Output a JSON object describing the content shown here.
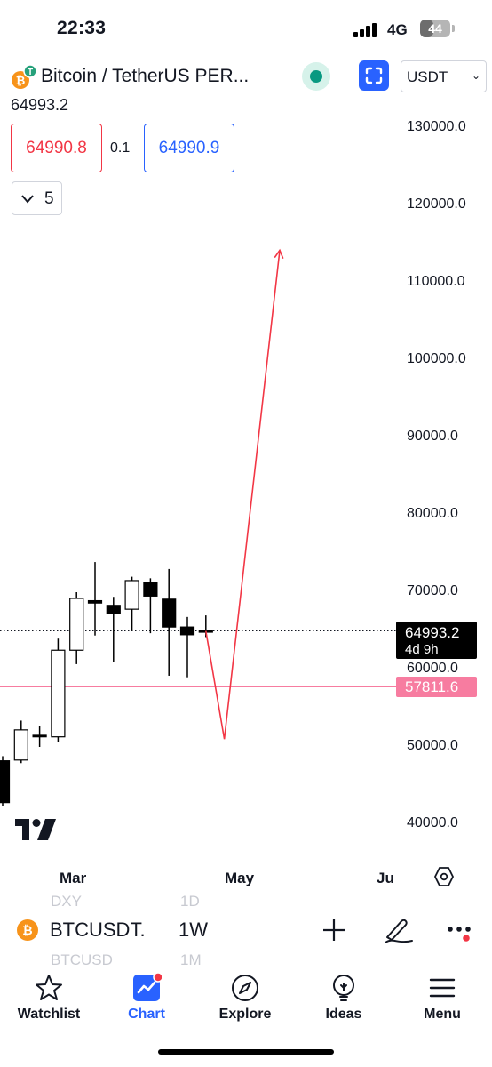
{
  "status_bar": {
    "time": "22:33",
    "network": "4G",
    "battery": "44",
    "battery_level_percent": 44
  },
  "header": {
    "title": "Bitcoin / TetherUS PER...",
    "last_price": "64993.2",
    "currency": "USDT",
    "sell_price": "64990.8",
    "spread": "0.1",
    "buy_price": "64990.9",
    "indicators_count": "5"
  },
  "colors": {
    "accent": "#2962ff",
    "sell": "#f23645",
    "live": "#089981",
    "level_line": "#f77ca0",
    "btc": "#f7931a"
  },
  "icons": {
    "fullscreen": "fullscreen-icon",
    "settings": "hexagon-settings-icon",
    "add": "plus-icon",
    "draw": "brush-icon",
    "more": "more-icon"
  },
  "chart_data": {
    "type": "candlestick",
    "interval": "1W",
    "y_axis": {
      "ticks": [
        130000,
        120000,
        110000,
        100000,
        90000,
        80000,
        70000,
        60000,
        50000,
        40000
      ],
      "tick_labels": [
        "130000.0",
        "120000.0",
        "110000.0",
        "100000.0",
        "90000.0",
        "80000.0",
        "70000.0",
        "60000.0",
        "50000.0",
        "40000.0"
      ]
    },
    "x_axis": {
      "tick_labels": [
        "Mar",
        "May",
        "Ju"
      ]
    },
    "candles": [
      {
        "o": 48200,
        "h": 48800,
        "l": 42300,
        "c": 42800
      },
      {
        "o": 48300,
        "h": 53400,
        "l": 47900,
        "c": 52200
      },
      {
        "o": 51500,
        "h": 52700,
        "l": 50000,
        "c": 51300
      },
      {
        "o": 51300,
        "h": 64000,
        "l": 50600,
        "c": 62500
      },
      {
        "o": 62500,
        "h": 70000,
        "l": 60700,
        "c": 69200
      },
      {
        "o": 68900,
        "h": 73900,
        "l": 64400,
        "c": 68600
      },
      {
        "o": 68300,
        "h": 69400,
        "l": 61000,
        "c": 67200
      },
      {
        "o": 67800,
        "h": 72000,
        "l": 65000,
        "c": 71500
      },
      {
        "o": 71300,
        "h": 71800,
        "l": 64700,
        "c": 69500
      },
      {
        "o": 69100,
        "h": 73000,
        "l": 59200,
        "c": 65500
      },
      {
        "o": 65500,
        "h": 66800,
        "l": 59000,
        "c": 64500
      },
      {
        "o": 65000,
        "h": 67000,
        "l": 64200,
        "c": 64993.2
      }
    ],
    "last_price": {
      "value": 64993.2,
      "label": "64993.2",
      "countdown": "4d 9h"
    },
    "horizontal_level": {
      "value": 57811.6,
      "label": "57811.6"
    },
    "projection_path": [
      {
        "candle_offset": 0,
        "y": 64993
      },
      {
        "candle_offset": 1,
        "y": 51000
      },
      {
        "candle_offset": 4,
        "y": 114200
      }
    ]
  },
  "symbol_bar": {
    "symbol": "BTCUSDT.",
    "interval": "1W",
    "ghost_top_left": "DXY",
    "ghost_top_right": "1D",
    "ghost_bottom_left": "BTCUSD",
    "ghost_bottom_right": "1M"
  },
  "nav": [
    {
      "label": "Watchlist"
    },
    {
      "label": "Chart"
    },
    {
      "label": "Explore"
    },
    {
      "label": "Ideas"
    },
    {
      "label": "Menu"
    }
  ]
}
